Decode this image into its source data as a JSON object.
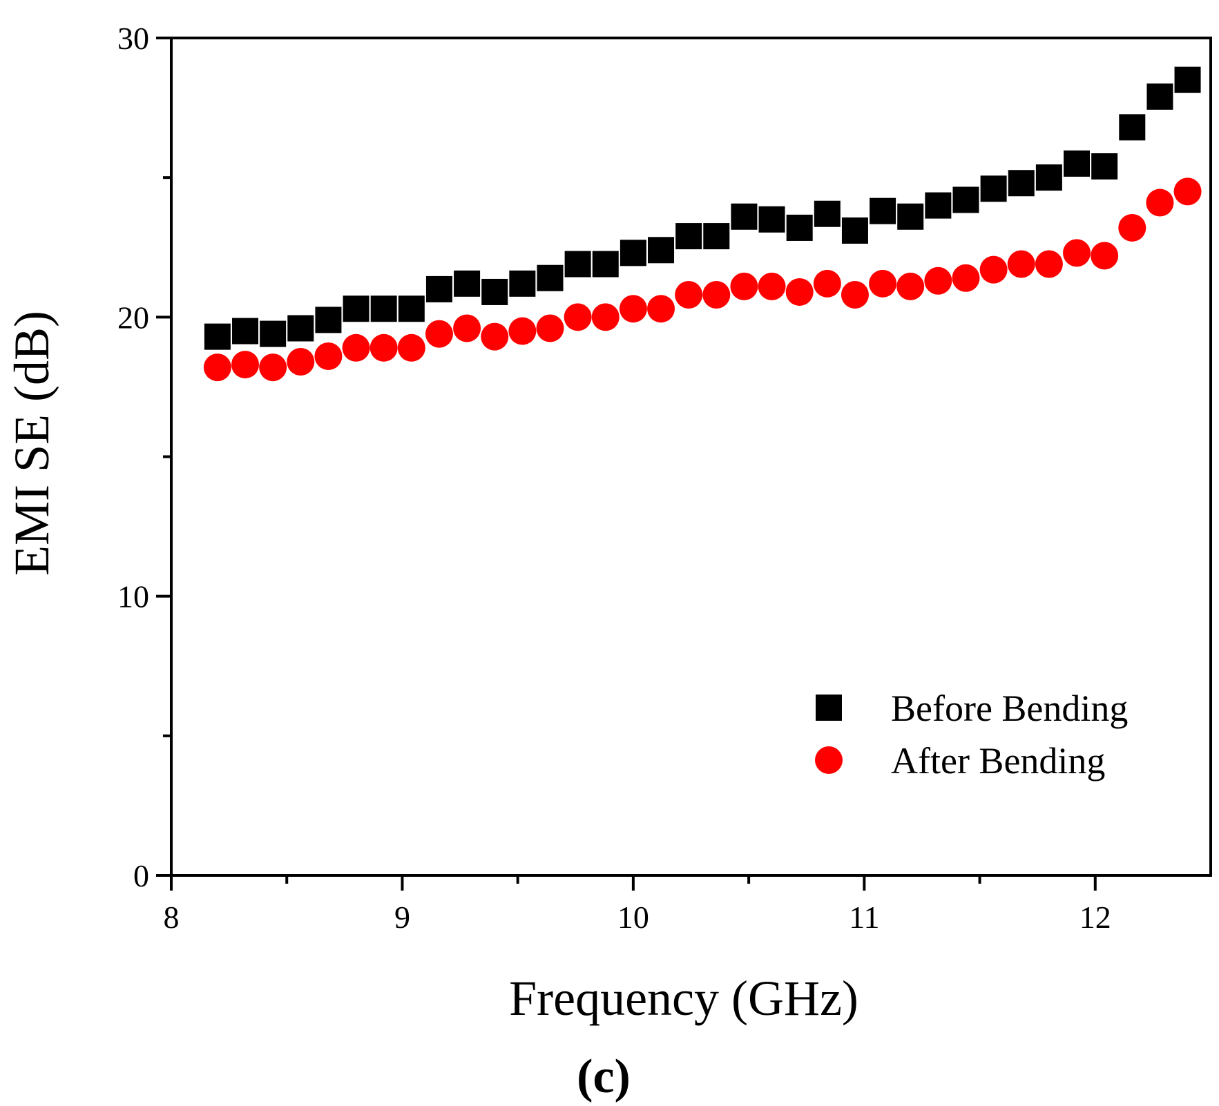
{
  "chart_data": {
    "type": "scatter",
    "title": "",
    "xlabel": "Frequency (GHz)",
    "ylabel": "EMI SE (dB)",
    "panel_label": "(c)",
    "xlim": [
      8,
      12.5
    ],
    "ylim": [
      0,
      30
    ],
    "x_ticks": [
      8,
      9,
      10,
      11,
      12
    ],
    "x_tick_labels": [
      "8",
      "9",
      "10",
      "11",
      "12"
    ],
    "x_minor_ticks": [
      8.5,
      9.5,
      10.5,
      11.5
    ],
    "y_ticks": [
      0,
      10,
      20,
      30
    ],
    "y_tick_labels": [
      "0",
      "10",
      "20",
      "30"
    ],
    "y_minor_ticks": [
      5,
      15,
      25
    ],
    "grid": false,
    "legend_position": "bottom-right",
    "x": [
      8.2,
      8.32,
      8.44,
      8.56,
      8.68,
      8.8,
      8.92,
      9.04,
      9.16,
      9.28,
      9.4,
      9.52,
      9.64,
      9.76,
      9.88,
      10.0,
      10.12,
      10.24,
      10.36,
      10.48,
      10.6,
      10.72,
      10.84,
      10.96,
      11.08,
      11.2,
      11.32,
      11.44,
      11.56,
      11.68,
      11.8,
      11.92,
      12.04,
      12.16,
      12.28,
      12.4
    ],
    "series": [
      {
        "name": "Before Bending",
        "marker": "square",
        "color": "#000000",
        "values": [
          19.3,
          19.5,
          19.4,
          19.6,
          19.9,
          20.3,
          20.3,
          20.3,
          21.0,
          21.2,
          20.9,
          21.2,
          21.4,
          21.9,
          21.9,
          22.3,
          22.4,
          22.9,
          22.9,
          23.6,
          23.5,
          23.2,
          23.7,
          23.1,
          23.8,
          23.6,
          24.0,
          24.2,
          24.6,
          24.8,
          25.0,
          25.5,
          25.4,
          26.8,
          27.9,
          28.5
        ]
      },
      {
        "name": "After Bending",
        "marker": "circle",
        "color": "#ff0000",
        "values": [
          18.2,
          18.3,
          18.2,
          18.4,
          18.6,
          18.9,
          18.9,
          18.9,
          19.4,
          19.6,
          19.3,
          19.5,
          19.6,
          20.0,
          20.0,
          20.3,
          20.3,
          20.8,
          20.8,
          21.1,
          21.1,
          20.9,
          21.2,
          20.8,
          21.2,
          21.1,
          21.3,
          21.4,
          21.7,
          21.9,
          21.9,
          22.3,
          22.2,
          23.2,
          24.1,
          24.5
        ]
      }
    ]
  }
}
